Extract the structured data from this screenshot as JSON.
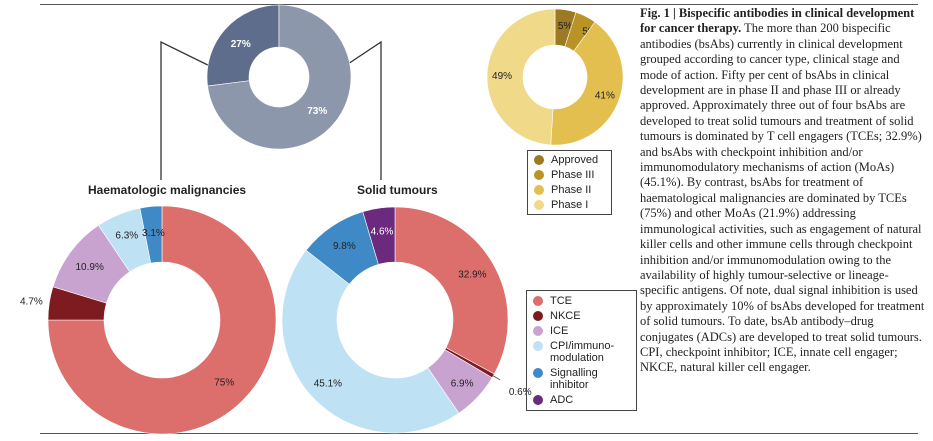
{
  "chart_data": [
    {
      "type": "pie",
      "subtype": "donut",
      "categories": [
        "Haematologic malignancies",
        "Solid tumours"
      ],
      "values": [
        27,
        73
      ],
      "labels": [
        "27%",
        "73%"
      ],
      "colors": [
        "#5e6d8c",
        "#8d97ab"
      ]
    },
    {
      "type": "pie",
      "subtype": "donut",
      "title": "Haematologic malignancies",
      "categories": [
        "TCE",
        "NKCE",
        "ICE",
        "CPI/immuno-modulation",
        "Signalling inhibitor",
        "ADC"
      ],
      "values": [
        75,
        4.7,
        10.9,
        6.3,
        3.1,
        0
      ],
      "labels": [
        "75%",
        "4.7%",
        "10.9%",
        "6.3%",
        "3.1%",
        ""
      ]
    },
    {
      "type": "pie",
      "subtype": "donut",
      "title": "Solid tumours",
      "categories": [
        "TCE",
        "NKCE",
        "ICE",
        "CPI/immuno-modulation",
        "Signalling inhibitor",
        "ADC"
      ],
      "values": [
        32.9,
        0.6,
        6.9,
        45.1,
        9.8,
        4.6
      ],
      "labels": [
        "32.9%",
        "0.6%",
        "6.9%",
        "45.1%",
        "9.8%",
        "4.6%"
      ]
    },
    {
      "type": "pie",
      "subtype": "donut",
      "categories": [
        "Approved",
        "Phase III",
        "Phase II",
        "Phase I"
      ],
      "values": [
        5,
        5,
        41,
        49
      ],
      "labels": [
        "5%",
        "5%",
        "41%",
        "49%"
      ],
      "colors": [
        "#9c7a24",
        "#b89426",
        "#e3bf4f",
        "#f1d98a"
      ]
    }
  ],
  "moa_colors": {
    "TCE": "#dc6e6c",
    "NKCE": "#7e1b20",
    "ICE": "#c9a3d0",
    "CPI/immuno-modulation": "#bfe1f4",
    "Signalling inhibitor": "#3f8ac6",
    "ADC": "#6b2a7e"
  },
  "phase_legend": [
    {
      "label": "Approved",
      "color": "#9c7a24"
    },
    {
      "label": "Phase III",
      "color": "#b89426"
    },
    {
      "label": "Phase II",
      "color": "#e3bf4f"
    },
    {
      "label": "Phase I",
      "color": "#f1d98a"
    }
  ],
  "moa_legend": [
    {
      "label": "TCE",
      "color": "#dc6e6c"
    },
    {
      "label": "NKCE",
      "color": "#7e1b20"
    },
    {
      "label": "ICE",
      "color": "#c9a3d0"
    },
    {
      "label": "CPI/immuno-modulation",
      "color": "#bfe1f4"
    },
    {
      "label": "Signalling inhibitor",
      "color": "#3f8ac6"
    },
    {
      "label": "ADC",
      "color": "#6b2a7e"
    }
  ],
  "caption": {
    "heading": "Fig. 1 | Bispecific antibodies in clinical development for cancer therapy.",
    "body": " The more than 200 bispecific antibodies (bsAbs) currently in clinical development grouped according to cancer type, clinical stage and mode of action. Fifty per cent of bsAbs in clinical development are in phase II and phase III or already approved. Approximately three out of four bsAbs are developed to treat solid tumours and treatment of solid tumours is dominated by T cell engagers (TCEs; 32.9%) and bsAbs with checkpoint inhibition and/or immunomodulatory mechanisms of action (MoAs) (45.1%). By contrast, bsAbs for treatment of haematological malignancies are dominated by TCEs (75%) and other MoAs (21.9%) addressing immunological activities, such as engagement of natural killer cells and other immune cells through checkpoint inhibition and/or immunomodulation owing to the availability of highly tumour-selective or lineage-specific antigens. Of note, dual signal inhibition is used by approximately 10% of bsAbs developed for treatment of solid tumours. To date, bsAb antibody–drug conjugates (ADCs) are developed to treat solid tumours. CPI, checkpoint inhibitor; ICE, innate cell engager; NKCE, natural killer cell engager."
  }
}
